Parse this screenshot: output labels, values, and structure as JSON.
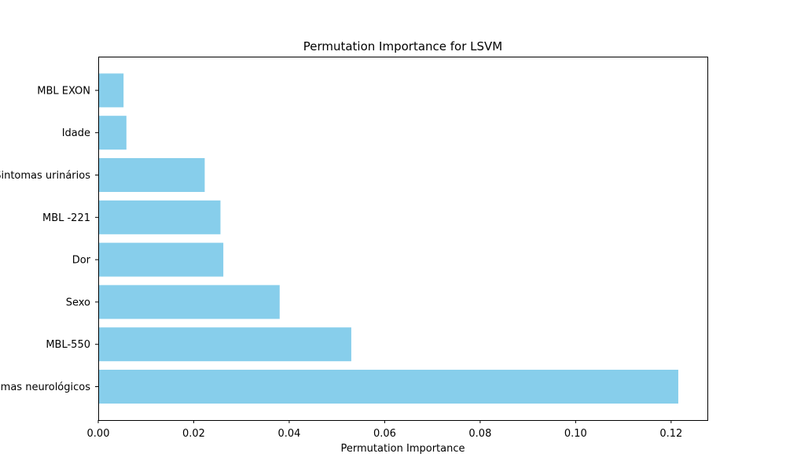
{
  "chart_data": {
    "type": "bar",
    "orientation": "horizontal",
    "title": "Permutation Importance for LSVM",
    "xlabel": "Permutation Importance",
    "ylabel": "",
    "categories": [
      "Sintomas neurológicos",
      "MBL-550",
      "Sexo",
      "Dor",
      "MBL -221",
      "Sintomas urinários",
      "Idade",
      "MBL EXON"
    ],
    "values": [
      0.1215,
      0.053,
      0.038,
      0.0262,
      0.0256,
      0.0223,
      0.0059,
      0.0053
    ],
    "xlim": [
      0,
      0.1276
    ],
    "xticks": [
      0,
      0.02,
      0.04,
      0.06,
      0.08,
      0.1,
      0.12
    ],
    "xtick_labels": [
      "0.00",
      "0.02",
      "0.04",
      "0.06",
      "0.08",
      "0.10",
      "0.12"
    ],
    "grid": false,
    "bar_color": "#87ceeb"
  }
}
